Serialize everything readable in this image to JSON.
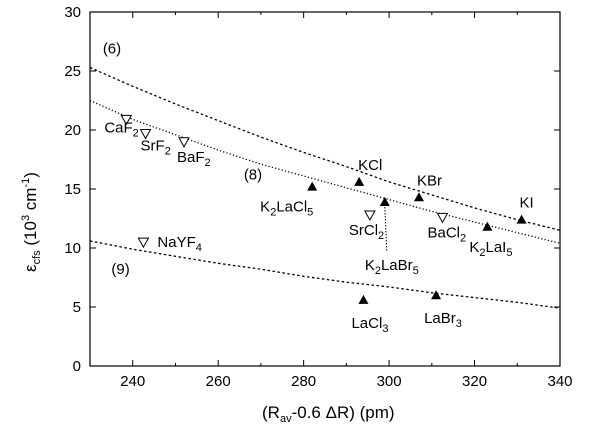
{
  "chart_data": {
    "type": "scatter",
    "xlabel": "(R<sub>av</sub>-0.6 ΔR)   (pm)",
    "ylabel": "ε<sub>cfs</sub>   (10<sup>3</sup> cm<sup>-1</sup>)",
    "xlim": [
      230,
      340
    ],
    "ylim": [
      0,
      30
    ],
    "xticks": [
      240,
      260,
      280,
      300,
      320,
      340
    ],
    "yticks": [
      0,
      5,
      10,
      15,
      20,
      25,
      30
    ],
    "grid": false,
    "series": [
      {
        "marker": "filled-triangle",
        "points": [
          {
            "x": 282.0,
            "y": 15.2,
            "label": "K<sub>2</sub>LaCl<sub>5</sub>"
          },
          {
            "x": 293.0,
            "y": 15.6,
            "label": "KCl"
          },
          {
            "x": 299.0,
            "y": 13.9,
            "label": "K<sub>2</sub>LaBr<sub>5</sub>"
          },
          {
            "x": 307.0,
            "y": 14.3,
            "label": "KBr"
          },
          {
            "x": 323.0,
            "y": 11.8,
            "label": "K<sub>2</sub>LaI<sub>5</sub>"
          },
          {
            "x": 331.0,
            "y": 12.4,
            "label": "KI"
          },
          {
            "x": 294.0,
            "y": 5.6,
            "label": "LaCl<sub>3</sub>"
          },
          {
            "x": 311.0,
            "y": 6.0,
            "label": "LaBr<sub>3</sub>"
          }
        ]
      },
      {
        "marker": "open-down-triangle",
        "points": [
          {
            "x": 238.5,
            "y": 20.9,
            "label": "CaF<sub>2</sub>"
          },
          {
            "x": 243.0,
            "y": 19.7,
            "label": "SrF<sub>2</sub>"
          },
          {
            "x": 252.0,
            "y": 19.0,
            "label": "BaF<sub>2</sub>"
          },
          {
            "x": 295.5,
            "y": 12.8,
            "label": "SrCl<sub>2</sub>"
          },
          {
            "x": 312.5,
            "y": 12.6,
            "label": "BaCl<sub>2</sub>"
          },
          {
            "x": 242.5,
            "y": 10.5,
            "label": "NaYF<sub>4</sub>"
          }
        ]
      }
    ],
    "curves": [
      {
        "label": "(6)",
        "style": "dotted-coarse",
        "x": [
          230,
          240,
          250,
          260,
          270,
          280,
          290,
          300,
          310,
          320,
          330,
          340
        ],
        "y": [
          25.3,
          23.7,
          22.2,
          20.8,
          19.4,
          18.1,
          16.9,
          15.6,
          14.5,
          13.4,
          12.4,
          11.5
        ]
      },
      {
        "label": "(8)",
        "style": "dotted-fine",
        "x": [
          230,
          240,
          250,
          260,
          270,
          280,
          290,
          300,
          310,
          320,
          330,
          340
        ],
        "y": [
          22.5,
          20.9,
          19.6,
          18.3,
          17.1,
          16.1,
          15.1,
          14.1,
          13.1,
          12.2,
          11.3,
          10.4
        ]
      },
      {
        "label": "(9)",
        "style": "dotted-coarse",
        "x": [
          230,
          240,
          250,
          260,
          270,
          280,
          290,
          300,
          310,
          320,
          330,
          340
        ],
        "y": [
          10.6,
          9.9,
          9.3,
          8.7,
          8.2,
          7.6,
          7.1,
          6.7,
          6.2,
          5.8,
          5.4,
          4.9
        ]
      }
    ]
  }
}
